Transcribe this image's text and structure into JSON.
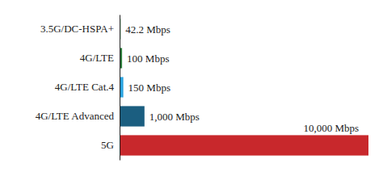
{
  "chart_data": {
    "type": "bar",
    "orientation": "horizontal",
    "categories": [
      "3.5G/DC-HSPA+",
      "4G/LTE",
      "4G/LTE Cat.4",
      "4G/LTE Advanced",
      "5G"
    ],
    "values": [
      42.2,
      100,
      150,
      1000,
      10000
    ],
    "value_labels": [
      "42.2 Mbps",
      "100 Mbps",
      "150 Mbps",
      "1,000 Mbps",
      "10,000 Mbps"
    ],
    "colors": [
      "#3aa655",
      "#2e7d3c",
      "#2aa3df",
      "#1b5e80",
      "#c8282c"
    ],
    "xlim": [
      0,
      10000
    ],
    "data_labels": true,
    "tick_labels": "y"
  }
}
